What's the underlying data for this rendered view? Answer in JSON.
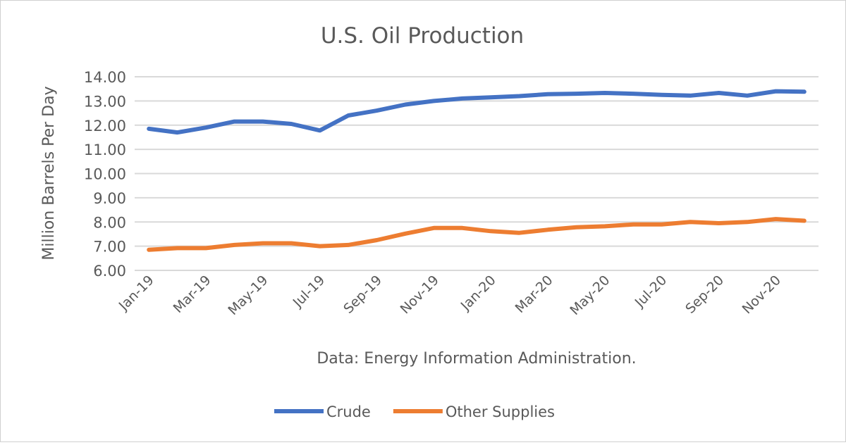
{
  "chart_data": {
    "type": "line",
    "title": "U.S. Oil Production",
    "xlabel": "Data: Energy Information Administration.",
    "ylabel": "Million Barrels Per Day",
    "ylim": [
      6,
      14
    ],
    "yticks": [
      "6.00",
      "7.00",
      "8.00",
      "9.00",
      "10.00",
      "11.00",
      "12.00",
      "13.00",
      "14.00"
    ],
    "grid": true,
    "legend": "bottom",
    "categories": [
      "Jan-19",
      "Feb-19",
      "Mar-19",
      "Apr-19",
      "May-19",
      "Jun-19",
      "Jul-19",
      "Aug-19",
      "Sep-19",
      "Oct-19",
      "Nov-19",
      "Dec-19",
      "Jan-20",
      "Feb-20",
      "Mar-20",
      "Apr-20",
      "May-20",
      "Jun-20",
      "Jul-20",
      "Aug-20",
      "Sep-20",
      "Oct-20",
      "Nov-20",
      "Dec-20"
    ],
    "xtick_labels": [
      "Jan-19",
      "Mar-19",
      "May-19",
      "Jul-19",
      "Sep-19",
      "Nov-19",
      "Jan-20",
      "Mar-20",
      "May-20",
      "Jul-20",
      "Sep-20",
      "Nov-20"
    ],
    "series": [
      {
        "name": "Crude",
        "color": "#4472c4",
        "values": [
          11.85,
          11.7,
          11.9,
          12.15,
          12.15,
          12.05,
          11.78,
          12.4,
          12.6,
          12.85,
          13.0,
          13.1,
          13.15,
          13.2,
          13.28,
          13.3,
          13.33,
          13.3,
          13.25,
          13.22,
          13.33,
          13.22,
          13.4,
          13.38
        ]
      },
      {
        "name": "Other Supplies",
        "color": "#ed7d31",
        "values": [
          6.85,
          6.92,
          6.92,
          7.05,
          7.12,
          7.12,
          7.0,
          7.05,
          7.25,
          7.52,
          7.75,
          7.75,
          7.62,
          7.55,
          7.68,
          7.78,
          7.82,
          7.9,
          7.9,
          8.0,
          7.95,
          8.0,
          8.12,
          8.05
        ]
      }
    ]
  }
}
